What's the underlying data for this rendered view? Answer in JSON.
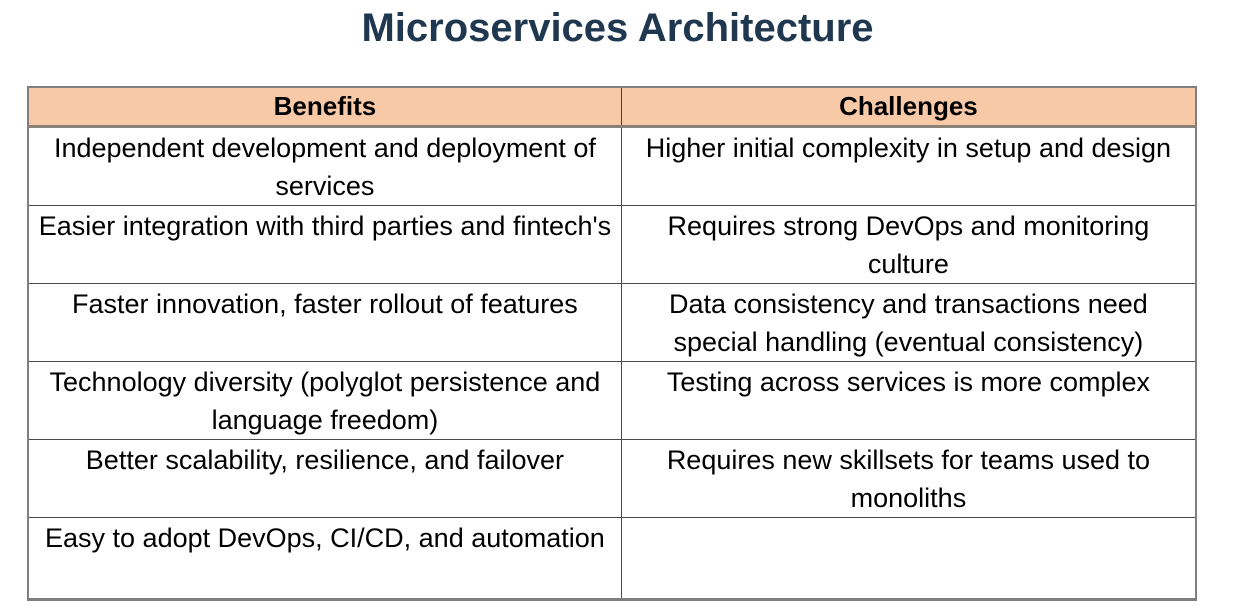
{
  "title": "Microservices Architecture",
  "colors": {
    "title_text": "#1F3850",
    "header_bg": "#F7C9A7",
    "cell_border": "#4a4a4a",
    "outer_border": "#7f7f7f"
  },
  "table": {
    "columns": [
      "Benefits",
      "Challenges"
    ],
    "rows": [
      [
        "Independent development and deployment of services",
        "Higher initial complexity in setup and design"
      ],
      [
        "Easier integration with third parties and fintech's",
        "Requires strong DevOps and monitoring culture"
      ],
      [
        "Faster innovation, faster rollout of features",
        "Data consistency and transactions need special handling (eventual consistency)"
      ],
      [
        "Technology diversity (polyglot persistence and language freedom)",
        "Testing across services is more complex"
      ],
      [
        "Better scalability, resilience, and failover",
        "Requires new skillsets for teams used to monoliths"
      ],
      [
        "Easy to adopt DevOps, CI/CD, and automation",
        ""
      ]
    ]
  }
}
